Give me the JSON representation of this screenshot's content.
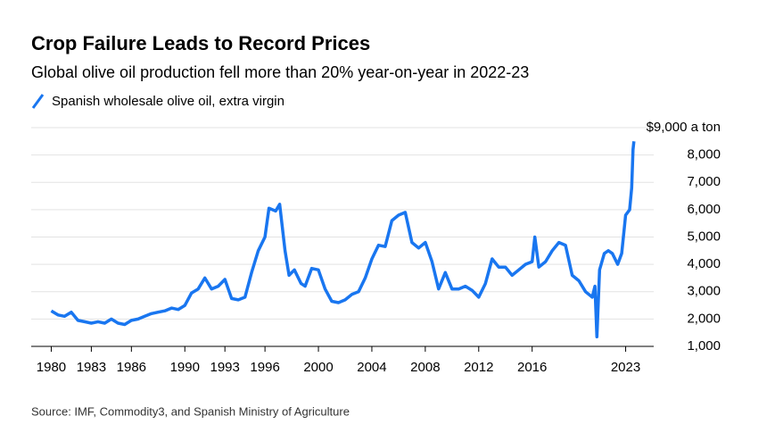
{
  "chart_data": {
    "type": "line",
    "title": "Crop Failure Leads to Record Prices",
    "subtitle": "Global olive oil production fell more than 20% year-on-year in 2022-23",
    "source": "Source: IMF, Commodity3, and Spanish Ministry of Agriculture",
    "x": [
      1980,
      1980.5,
      1981,
      1981.5,
      1982,
      1982.5,
      1983,
      1983.5,
      1984,
      1984.5,
      1985,
      1985.5,
      1986,
      1986.5,
      1987,
      1987.5,
      1988,
      1988.5,
      1989,
      1989.5,
      1990,
      1990.5,
      1991,
      1991.5,
      1992,
      1992.5,
      1993,
      1993.5,
      1994,
      1994.5,
      1995,
      1995.5,
      1996,
      1996.3,
      1996.8,
      1997.1,
      1997.5,
      1997.8,
      1998.2,
      1998.7,
      1999,
      1999.5,
      2000,
      2000.5,
      2001,
      2001.5,
      2002,
      2002.5,
      2003,
      2003.5,
      2004,
      2004.5,
      2005,
      2005.5,
      2006,
      2006.5,
      2007,
      2007.5,
      2008,
      2008.5,
      2009,
      2009.5,
      2010,
      2010.5,
      2011,
      2011.5,
      2012,
      2012.5,
      2013,
      2013.5,
      2014,
      2014.5,
      2015,
      2015.5,
      2016,
      2016.2,
      2016.5,
      2017,
      2017.5,
      2018,
      2018.5,
      2019,
      2019.5,
      2020,
      2020.5,
      2020.7,
      2020.85,
      2021.05,
      2021.4,
      2021.7,
      2022,
      2022.4,
      2022.7,
      2023,
      2023.3,
      2023.45,
      2023.55,
      2023.62
    ],
    "series": [
      {
        "name": "Spanish wholesale olive oil, extra virgin",
        "color": "#1976f0",
        "values": [
          2300,
          2150,
          2100,
          2250,
          1950,
          1900,
          1850,
          1900,
          1850,
          2000,
          1850,
          1800,
          1950,
          2000,
          2100,
          2200,
          2250,
          2300,
          2400,
          2350,
          2500,
          2950,
          3100,
          3500,
          3100,
          3200,
          3450,
          2750,
          2700,
          2800,
          3700,
          4500,
          5000,
          6050,
          5950,
          6200,
          4500,
          3600,
          3800,
          3300,
          3200,
          3850,
          3800,
          3100,
          2650,
          2600,
          2700,
          2900,
          3000,
          3500,
          4200,
          4700,
          4650,
          5600,
          5800,
          5900,
          4800,
          4600,
          4800,
          4100,
          3100,
          3700,
          3100,
          3100,
          3200,
          3050,
          2800,
          3300,
          4200,
          3900,
          3900,
          3600,
          3800,
          4000,
          4100,
          5000,
          3900,
          4100,
          4500,
          4800,
          4700,
          3600,
          3400,
          3000,
          2800,
          3200,
          1350,
          3800,
          4400,
          4500,
          4400,
          4000,
          4400,
          5800,
          6000,
          6800,
          8200,
          8500
        ]
      }
    ],
    "xlim": [
      1978.5,
      2025.1
    ],
    "xticks": [
      1980,
      1983,
      1986,
      1990,
      1993,
      1996,
      2000,
      2004,
      2008,
      2012,
      2016,
      2023
    ],
    "ylim": [
      1000,
      9000
    ],
    "yticks": [
      {
        "value": 1000,
        "label": "1,000"
      },
      {
        "value": 2000,
        "label": "2,000"
      },
      {
        "value": 3000,
        "label": "3,000"
      },
      {
        "value": 4000,
        "label": "4,000"
      },
      {
        "value": 5000,
        "label": "5,000"
      },
      {
        "value": 6000,
        "label": "6,000"
      },
      {
        "value": 7000,
        "label": "7,000"
      },
      {
        "value": 8000,
        "label": "8,000"
      },
      {
        "value": 9000,
        "label": "$9,000 a ton"
      }
    ],
    "grid": true
  }
}
